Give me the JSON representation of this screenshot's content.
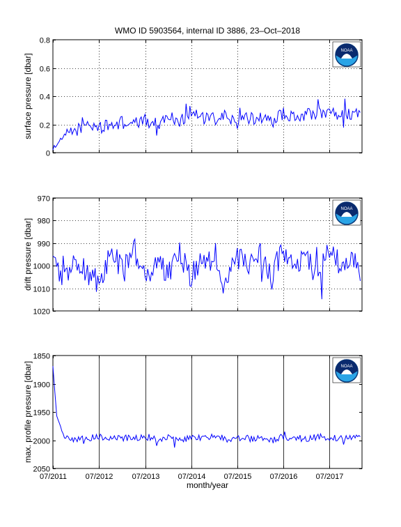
{
  "figure": {
    "title": "WMO ID 5903564, internal ID 3886, 23–Oct–2018",
    "xlabel": "month/year",
    "x_ticks": [
      "07/2011",
      "07/2012",
      "07/2013",
      "07/2014",
      "07/2015",
      "07/2016",
      "07/2017"
    ],
    "logo_text": "NOAA",
    "line_color": "#0000ff"
  },
  "chart_data": [
    {
      "type": "line",
      "ylabel": "surface pressure [dbar]",
      "y_ticks": [
        "0.8",
        "0.6",
        "0.4",
        "0.2",
        "0"
      ],
      "y_tick_values": [
        0.8,
        0.6,
        0.4,
        0.2,
        0
      ],
      "ylim": [
        0,
        0.8
      ],
      "y_reversed": false,
      "grid": "dotted",
      "xlim": [
        "2011-07-01",
        "2018-03-15"
      ],
      "x": [
        "2011-07",
        "2011-10",
        "2012-01",
        "2012-04",
        "2012-07",
        "2012-10",
        "2013-01",
        "2013-04",
        "2013-07",
        "2013-10",
        "2014-01",
        "2014-04",
        "2014-07",
        "2014-10",
        "2015-01",
        "2015-04",
        "2015-07",
        "2015-10",
        "2016-01",
        "2016-04",
        "2016-07",
        "2016-10",
        "2017-01",
        "2017-04",
        "2017-07",
        "2017-10",
        "2018-01",
        "2018-03"
      ],
      "y": [
        0.03,
        0.12,
        0.16,
        0.2,
        0.18,
        0.19,
        0.22,
        0.2,
        0.23,
        0.2,
        0.26,
        0.22,
        0.3,
        0.24,
        0.24,
        0.26,
        0.21,
        0.24,
        0.25,
        0.22,
        0.28,
        0.24,
        0.28,
        0.27,
        0.3,
        0.28,
        0.27,
        0.29
      ]
    },
    {
      "type": "line",
      "ylabel": "drift pressure [dbar]",
      "y_ticks": [
        "970",
        "980",
        "990",
        "1000",
        "1010",
        "1020"
      ],
      "y_tick_values": [
        970,
        980,
        990,
        1000,
        1010,
        1020
      ],
      "ylim": [
        970,
        1020
      ],
      "y_reversed": true,
      "grid": "dotted",
      "xlim": [
        "2011-07-01",
        "2018-03-15"
      ],
      "x": [
        "2011-07",
        "2011-10",
        "2012-01",
        "2012-04",
        "2012-07",
        "2012-10",
        "2013-01",
        "2013-04",
        "2013-07",
        "2013-10",
        "2014-01",
        "2014-04",
        "2014-07",
        "2014-10",
        "2015-01",
        "2015-04",
        "2015-07",
        "2015-10",
        "2016-01",
        "2016-04",
        "2016-07",
        "2016-10",
        "2017-01",
        "2017-04",
        "2017-07",
        "2017-10",
        "2018-01",
        "2018-03"
      ],
      "y": [
        1000,
        1005,
        997,
        1003,
        1008,
        995,
        1001,
        992,
        1006,
        998,
        1003,
        994,
        1005,
        997,
        1002,
        1009,
        996,
        1001,
        995,
        1004,
        992,
        1001,
        996,
        1005,
        993,
        1000,
        997,
        1003
      ]
    },
    {
      "type": "line",
      "ylabel": "max. profile pressure [dbar]",
      "y_ticks": [
        "1850",
        "1900",
        "1950",
        "2000",
        "2050"
      ],
      "y_tick_values": [
        1850,
        1900,
        1950,
        2000,
        2050
      ],
      "ylim": [
        1850,
        2050
      ],
      "y_reversed": true,
      "grid": "solid-vertical",
      "xlim": [
        "2011-07-01",
        "2018-03-15"
      ],
      "x": [
        "2011-07",
        "2011-08",
        "2011-10",
        "2012-01",
        "2012-04",
        "2012-07",
        "2012-10",
        "2013-01",
        "2013-04",
        "2013-07",
        "2013-10",
        "2014-01",
        "2014-04",
        "2014-07",
        "2014-10",
        "2015-01",
        "2015-04",
        "2015-07",
        "2015-10",
        "2016-01",
        "2016-04",
        "2016-07",
        "2016-10",
        "2017-01",
        "2017-04",
        "2017-07",
        "2017-10",
        "2018-01",
        "2018-03"
      ],
      "y": [
        1870,
        1960,
        1995,
        1998,
        1997,
        1993,
        1999,
        1996,
        1998,
        1994,
        1997,
        1996,
        1999,
        1995,
        1997,
        1993,
        1998,
        1995,
        1997,
        1996,
        1999,
        1994,
        1996,
        1997,
        1994,
        1996,
        1997,
        1995,
        1996
      ]
    }
  ]
}
